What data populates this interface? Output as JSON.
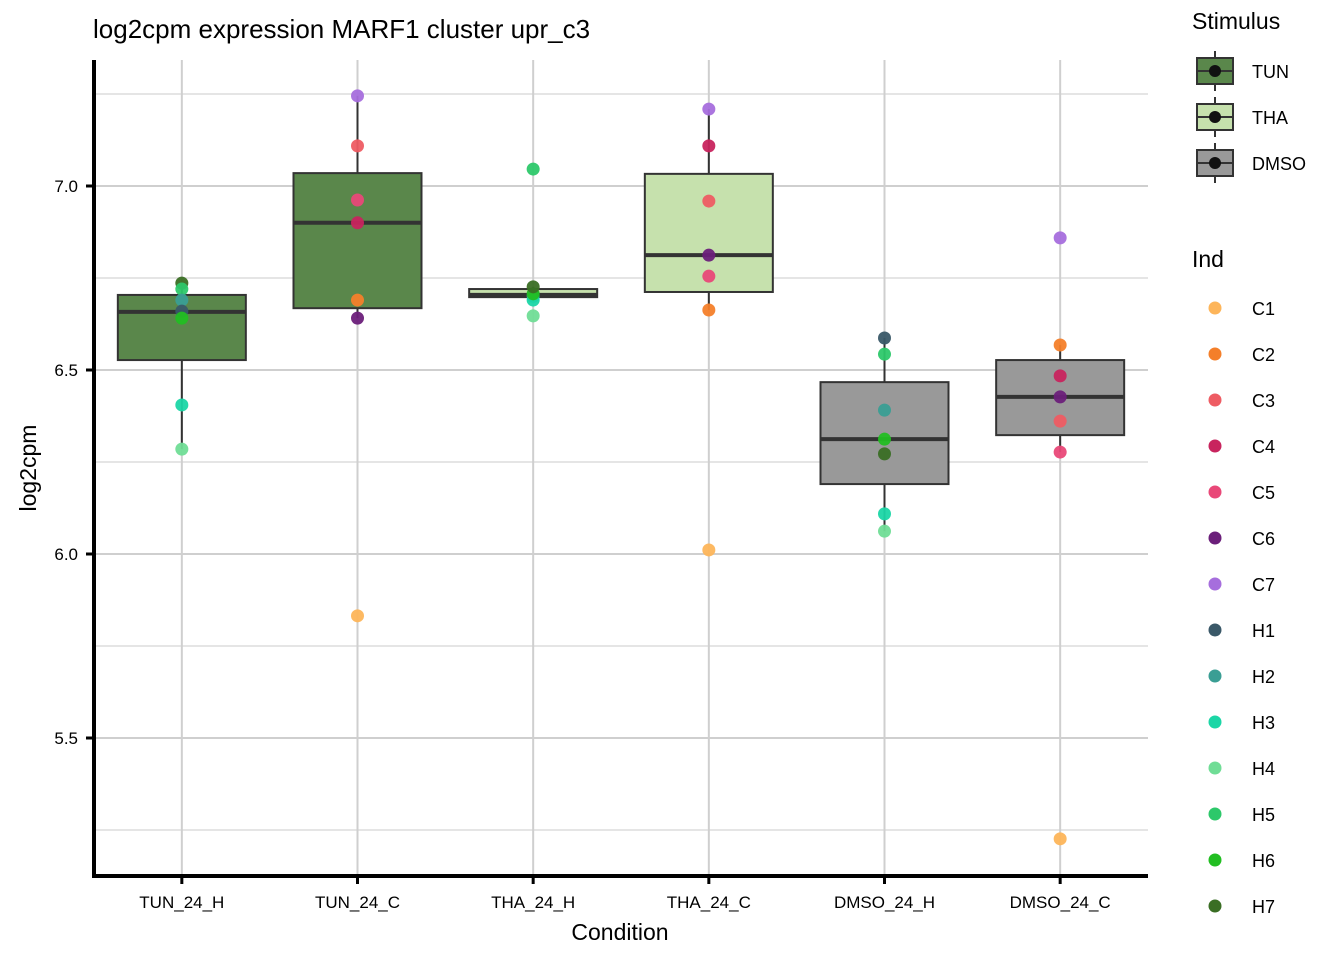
{
  "chart_data": {
    "type": "box",
    "title": "log2cpm expression MARF1 cluster upr_c3",
    "xlabel": "Condition",
    "ylabel": "log2cpm",
    "ylim": [
      5.17,
      7.34
    ],
    "yticks": [
      5.5,
      6.0,
      6.5,
      7.0
    ],
    "ytick_labels": [
      "5.5",
      "6.0",
      "6.5",
      "7.0"
    ],
    "yminor": [
      5.25,
      5.75,
      6.25,
      6.75,
      7.25
    ],
    "grid": true,
    "categories": [
      "TUN_24_H",
      "TUN_24_C",
      "THA_24_H",
      "THA_24_C",
      "DMSO_24_H",
      "DMSO_24_C"
    ],
    "stimulus_legend": {
      "title": "Stimulus",
      "placement": "right",
      "items": [
        {
          "name": "TUN",
          "color": "#5A874B"
        },
        {
          "name": "THA",
          "color": "#C6E1AD"
        },
        {
          "name": "DMSO",
          "color": "#999999"
        }
      ]
    },
    "ind_legend": {
      "title": "Ind",
      "placement": "right",
      "items": [
        {
          "name": "C1",
          "color": "#FDB55A"
        },
        {
          "name": "C2",
          "color": "#F47F2A"
        },
        {
          "name": "C3",
          "color": "#EE5C63"
        },
        {
          "name": "C4",
          "color": "#C8245E"
        },
        {
          "name": "C5",
          "color": "#E94878"
        },
        {
          "name": "C6",
          "color": "#6B1F7A"
        },
        {
          "name": "C7",
          "color": "#A66EDD"
        },
        {
          "name": "H1",
          "color": "#3A5868"
        },
        {
          "name": "H2",
          "color": "#3A9E94"
        },
        {
          "name": "H3",
          "color": "#1BD6A6"
        },
        {
          "name": "H4",
          "color": "#70DD96"
        },
        {
          "name": "H5",
          "color": "#2DC86A"
        },
        {
          "name": "H6",
          "color": "#22BE22"
        },
        {
          "name": "H7",
          "color": "#3A6E24"
        }
      ]
    },
    "boxes": [
      {
        "category": "TUN_24_H",
        "stimulus": "TUN",
        "q1": 6.527,
        "median": 6.658,
        "q3": 6.704,
        "whisker_low": 6.285,
        "whisker_high": 6.736
      },
      {
        "category": "TUN_24_C",
        "stimulus": "TUN",
        "q1": 6.668,
        "median": 6.9,
        "q3": 7.035,
        "whisker_low": 6.641,
        "whisker_high": 7.245
      },
      {
        "category": "THA_24_H",
        "stimulus": "THA",
        "q1": 6.698,
        "median": 6.704,
        "q3": 6.72,
        "whisker_low": 6.698,
        "whisker_high": 6.726
      },
      {
        "category": "THA_24_C",
        "stimulus": "THA",
        "q1": 6.712,
        "median": 6.812,
        "q3": 7.033,
        "whisker_low": 6.663,
        "whisker_high": 7.209
      },
      {
        "category": "DMSO_24_H",
        "stimulus": "DMSO",
        "q1": 6.19,
        "median": 6.312,
        "q3": 6.467,
        "whisker_low": 6.062,
        "whisker_high": 6.587
      },
      {
        "category": "DMSO_24_C",
        "stimulus": "DMSO",
        "q1": 6.323,
        "median": 6.427,
        "q3": 6.527,
        "whisker_low": 6.277,
        "whisker_high": 6.568
      }
    ],
    "points": [
      {
        "category": "TUN_24_H",
        "ind": "H7",
        "value": 6.736
      },
      {
        "category": "TUN_24_H",
        "ind": "H5",
        "value": 6.72
      },
      {
        "category": "TUN_24_H",
        "ind": "H2",
        "value": 6.69
      },
      {
        "category": "TUN_24_H",
        "ind": "H1",
        "value": 6.66
      },
      {
        "category": "TUN_24_H",
        "ind": "H6",
        "value": 6.641
      },
      {
        "category": "TUN_24_H",
        "ind": "H3",
        "value": 6.405
      },
      {
        "category": "TUN_24_H",
        "ind": "H4",
        "value": 6.285
      },
      {
        "category": "TUN_24_C",
        "ind": "C7",
        "value": 7.245
      },
      {
        "category": "TUN_24_C",
        "ind": "C3",
        "value": 7.109
      },
      {
        "category": "TUN_24_C",
        "ind": "C5",
        "value": 6.962
      },
      {
        "category": "TUN_24_C",
        "ind": "C4",
        "value": 6.9
      },
      {
        "category": "TUN_24_C",
        "ind": "C2",
        "value": 6.69
      },
      {
        "category": "TUN_24_C",
        "ind": "C6",
        "value": 6.641
      },
      {
        "category": "TUN_24_C",
        "ind": "C1",
        "value": 5.832
      },
      {
        "category": "THA_24_H",
        "ind": "H5",
        "value": 7.046
      },
      {
        "category": "THA_24_H",
        "ind": "H1",
        "value": 6.704
      },
      {
        "category": "THA_24_H",
        "ind": "H2",
        "value": 6.7
      },
      {
        "category": "THA_24_H",
        "ind": "H3",
        "value": 6.69
      },
      {
        "category": "THA_24_H",
        "ind": "H6",
        "value": 6.707
      },
      {
        "category": "THA_24_H",
        "ind": "H7",
        "value": 6.726
      },
      {
        "category": "THA_24_H",
        "ind": "H4",
        "value": 6.647
      },
      {
        "category": "THA_24_C",
        "ind": "C7",
        "value": 7.209
      },
      {
        "category": "THA_24_C",
        "ind": "C4",
        "value": 7.109
      },
      {
        "category": "THA_24_C",
        "ind": "C3",
        "value": 6.959
      },
      {
        "category": "THA_24_C",
        "ind": "C6",
        "value": 6.812
      },
      {
        "category": "THA_24_C",
        "ind": "C5",
        "value": 6.755
      },
      {
        "category": "THA_24_C",
        "ind": "C2",
        "value": 6.663
      },
      {
        "category": "THA_24_C",
        "ind": "C1",
        "value": 6.011
      },
      {
        "category": "DMSO_24_H",
        "ind": "H1",
        "value": 6.587
      },
      {
        "category": "DMSO_24_H",
        "ind": "H5",
        "value": 6.543
      },
      {
        "category": "DMSO_24_H",
        "ind": "H2",
        "value": 6.391
      },
      {
        "category": "DMSO_24_H",
        "ind": "H6",
        "value": 6.312
      },
      {
        "category": "DMSO_24_H",
        "ind": "H7",
        "value": 6.272
      },
      {
        "category": "DMSO_24_H",
        "ind": "H3",
        "value": 6.109
      },
      {
        "category": "DMSO_24_H",
        "ind": "H4",
        "value": 6.062
      },
      {
        "category": "DMSO_24_C",
        "ind": "C7",
        "value": 6.859
      },
      {
        "category": "DMSO_24_C",
        "ind": "C2",
        "value": 6.568
      },
      {
        "category": "DMSO_24_C",
        "ind": "C4",
        "value": 6.484
      },
      {
        "category": "DMSO_24_C",
        "ind": "C6",
        "value": 6.427
      },
      {
        "category": "DMSO_24_C",
        "ind": "C3",
        "value": 6.361
      },
      {
        "category": "DMSO_24_C",
        "ind": "C5",
        "value": 6.277
      },
      {
        "category": "DMSO_24_C",
        "ind": "C1",
        "value": 5.226
      }
    ]
  }
}
